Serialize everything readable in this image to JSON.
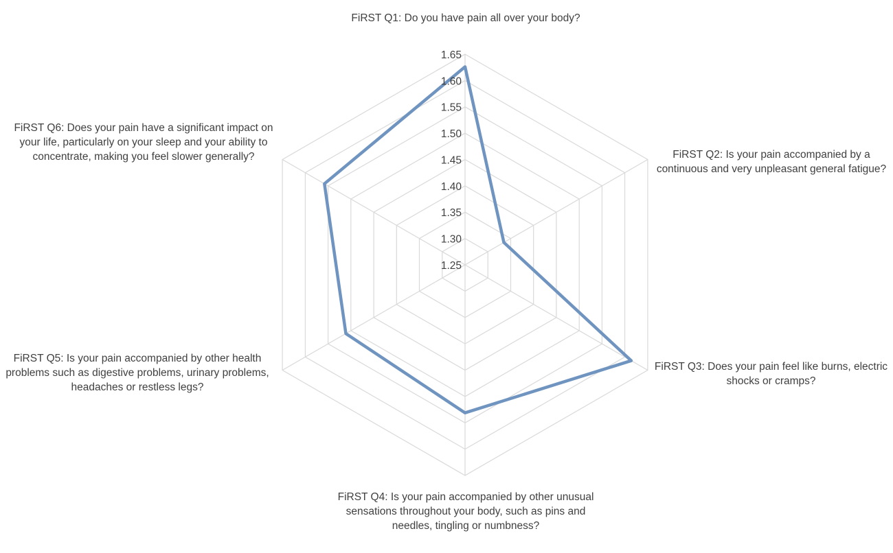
{
  "chart_data": {
    "type": "radar",
    "axes": [
      "FiRST Q1: Do you have pain all over your body?",
      "FiRST Q2: Is your pain accompanied by a continuous and very unpleasant general fatigue?",
      "FiRST Q3: Does your pain feel like burns, electric shocks or cramps?",
      "FiRST Q4: Is your pain accompanied by other unusual sensations throughout your body, such as pins and needles, tingling or numbness?",
      "FiRST Q5: Is your pain accompanied by other health problems such as digestive problems, urinary problems, headaches or restless legs?",
      "FiRST Q6: Does your pain have a significant impact on your life, particularly on your sleep and your ability to concentrate, making you feel slower generally?"
    ],
    "series": [
      {
        "values": [
          1.626,
          1.335,
          1.614,
          1.531,
          1.511,
          1.558
        ],
        "color": "#7094c0"
      }
    ],
    "ticks": [
      "1.25",
      "1.30",
      "1.35",
      "1.40",
      "1.45",
      "1.50",
      "1.55",
      "1.60",
      "1.65"
    ],
    "rlim": [
      1.25,
      1.65
    ],
    "grid": true,
    "grid_color": "#d9d9d9",
    "text_color": "#404040"
  }
}
